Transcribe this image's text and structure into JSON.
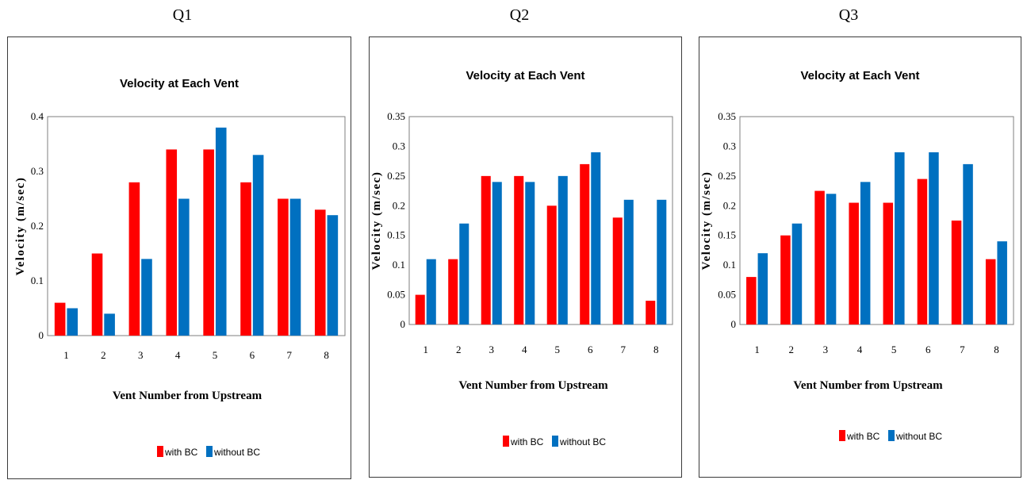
{
  "panel_titles": [
    "Q1",
    "Q2",
    "Q3"
  ],
  "colors": {
    "with_bc": "#ff0000",
    "without_bc": "#0070c0"
  },
  "chart_data": [
    {
      "type": "bar",
      "title": "Velocity at Each Vent",
      "xlabel": "Vent Number from Upstream",
      "ylabel": "Velocity (m/sec)",
      "categories": [
        "1",
        "2",
        "3",
        "4",
        "5",
        "6",
        "7",
        "8"
      ],
      "ylim": [
        0,
        0.4
      ],
      "yticks": [
        "0",
        "0.1",
        "0.2",
        "0.3",
        "0.4"
      ],
      "series": [
        {
          "name": "with BC",
          "values": [
            0.06,
            0.15,
            0.28,
            0.34,
            0.34,
            0.28,
            0.25,
            0.23
          ]
        },
        {
          "name": "without BC",
          "values": [
            0.05,
            0.04,
            0.14,
            0.25,
            0.38,
            0.33,
            0.25,
            0.22
          ]
        }
      ],
      "legend_position": "bottom",
      "grid": false
    },
    {
      "type": "bar",
      "title": "Velocity at Each Vent",
      "xlabel": "Vent Number from Upstream",
      "ylabel": "Velocity (m/sec)",
      "categories": [
        "1",
        "2",
        "3",
        "4",
        "5",
        "6",
        "7",
        "8"
      ],
      "ylim": [
        0,
        0.35
      ],
      "yticks": [
        "0",
        "0.05",
        "0.1",
        "0.15",
        "0.2",
        "0.25",
        "0.3",
        "0.35"
      ],
      "series": [
        {
          "name": "with BC",
          "values": [
            0.05,
            0.11,
            0.25,
            0.25,
            0.2,
            0.27,
            0.18,
            0.04
          ]
        },
        {
          "name": "without BC",
          "values": [
            0.11,
            0.17,
            0.24,
            0.24,
            0.25,
            0.29,
            0.21,
            0.21
          ]
        }
      ],
      "legend_position": "bottom",
      "grid": false
    },
    {
      "type": "bar",
      "title": "Velocity at Each Vent",
      "xlabel": "Vent Number from Upstream",
      "ylabel": "Velocity (m/sec)",
      "categories": [
        "1",
        "2",
        "3",
        "4",
        "5",
        "6",
        "7",
        "8"
      ],
      "ylim": [
        0,
        0.35
      ],
      "yticks": [
        "0",
        "0.05",
        "0.1",
        "0.15",
        "0.2",
        "0.25",
        "0.3",
        "0.35"
      ],
      "series": [
        {
          "name": "with BC",
          "values": [
            0.08,
            0.15,
            0.225,
            0.205,
            0.205,
            0.245,
            0.175,
            0.11
          ]
        },
        {
          "name": "without BC",
          "values": [
            0.12,
            0.17,
            0.22,
            0.24,
            0.29,
            0.29,
            0.27,
            0.14
          ]
        }
      ],
      "legend_position": "bottom",
      "grid": false
    }
  ]
}
